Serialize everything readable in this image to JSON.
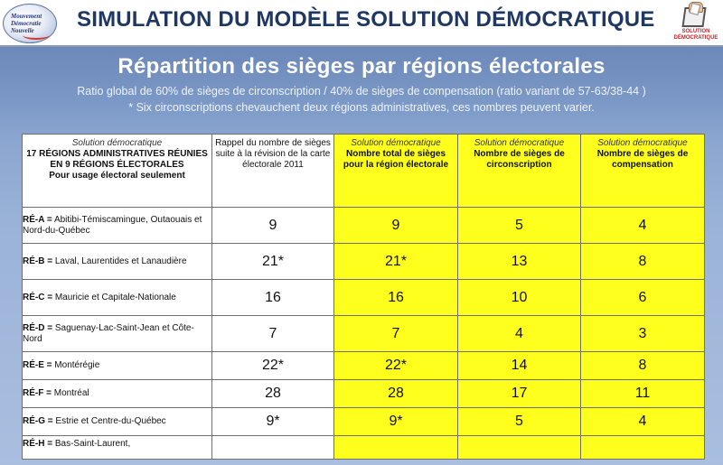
{
  "header": {
    "title": "SIMULATION DU MODÈLE SOLUTION DÉMOCRATIQUE",
    "logo_left": {
      "line1": "Mouvement",
      "line2": "Démocratie",
      "line3": "Nouvelle"
    },
    "logo_right": {
      "caption1": "SOLUTION",
      "caption2": "DÉMOCRATIQUE"
    }
  },
  "slide": {
    "subtitle": "Répartition des sièges par régions électorales",
    "note1": "Ratio global de 60% de sièges de circonscription / 40% de sièges de compensation (ratio variant de 57-63/38-44 )",
    "note2": "* Six circonscriptions chevauchent deux régions administratives, ces nombres peuvent varier."
  },
  "table": {
    "headers": {
      "col1_italic": "Solution démocratique",
      "col1_bold": "17 RÉGIONS ADMINISTRATIVES RÉUNIES EN 9 RÉGIONS ÉLECTORALES",
      "col1_sub": "Pour usage électoral seulement",
      "col2": "Rappel du nombre de sièges suite à la révision de la carte électorale 2011",
      "col3_italic": "Solution démocratique",
      "col3_bold": "Nombre total de sièges pour la région électorale",
      "col4_italic": "Solution démocratique",
      "col4_bold": "Nombre de sièges de circonscription",
      "col5_italic": "Solution démocratique",
      "col5_bold": "Nombre de sièges de compensation"
    },
    "rows": [
      {
        "code": "RÉ-A =",
        "name": "Abitibi-Témiscamingue, Outaouais et Nord-du-Québec",
        "rappel": "9",
        "total": "9",
        "circ": "5",
        "comp": "4"
      },
      {
        "code": "RÉ-B =",
        "name": "Laval, Laurentides et Lanaudière",
        "rappel": "21*",
        "total": "21*",
        "circ": "13",
        "comp": "8"
      },
      {
        "code": "RÉ-C =",
        "name": "Mauricie et Capitale-Nationale",
        "rappel": "16",
        "total": "16",
        "circ": "10",
        "comp": "6"
      },
      {
        "code": "RÉ-D =",
        "name": "Saguenay-Lac-Saint-Jean et Côte-Nord",
        "rappel": "7",
        "total": "7",
        "circ": "4",
        "comp": "3"
      },
      {
        "code": "RÉ-E =",
        "name": "Montérégie",
        "rappel": "22*",
        "total": "22*",
        "circ": "14",
        "comp": "8"
      },
      {
        "code": "RÉ-F =",
        "name": "Montréal",
        "rappel": "28",
        "total": "28",
        "circ": "17",
        "comp": "11"
      },
      {
        "code": "RÉ-G =",
        "name": "Estrie et Centre-du-Québec",
        "rappel": "9*",
        "total": "9*",
        "circ": "5",
        "comp": "4"
      },
      {
        "code": "RÉ-H =",
        "name": "Bas-Saint-Laurent,",
        "rappel": "",
        "total": "",
        "circ": "",
        "comp": ""
      }
    ]
  }
}
